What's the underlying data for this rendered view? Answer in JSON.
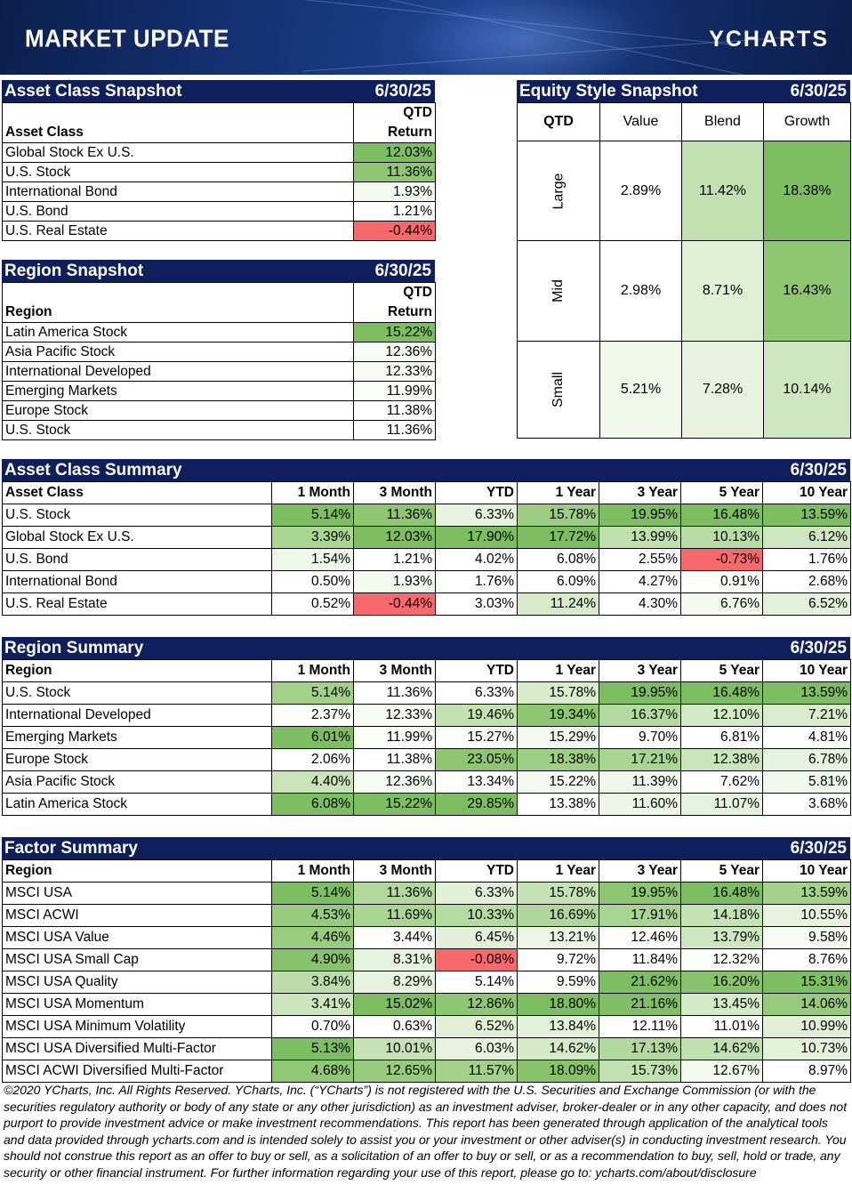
{
  "banner": {
    "title": "MARKET UPDATE",
    "logo": "YCHARTS"
  },
  "colors": {
    "header_bg": "#0e1f5b",
    "green_strong": "#7dbe63",
    "green_mid": "#a9d491",
    "green_light": "#d3eac6",
    "green_pale": "#ebf5e4",
    "red": "#f8696b"
  },
  "asset_snapshot": {
    "title": "Asset Class Snapshot",
    "date": "6/30/25",
    "col_label": "Asset Class",
    "col_value_line1": "QTD",
    "col_value_line2": "Return",
    "rows": [
      {
        "label": "Global Stock Ex U.S.",
        "value": "12.03%",
        "shade": "#7dbe63"
      },
      {
        "label": "U.S. Stock",
        "value": "11.36%",
        "shade": "#8ec671"
      },
      {
        "label": "International Bond",
        "value": "1.93%",
        "shade": "#f2f9ee"
      },
      {
        "label": "U.S. Bond",
        "value": "1.21%",
        "shade": "#ffffff"
      },
      {
        "label": "U.S. Real Estate",
        "value": "-0.44%",
        "shade": "#f8696b"
      }
    ]
  },
  "region_snapshot": {
    "title": "Region Snapshot",
    "date": "6/30/25",
    "col_label": "Region",
    "col_value_line1": "QTD",
    "col_value_line2": "Return",
    "rows": [
      {
        "label": "Latin America Stock",
        "value": "15.22%",
        "shade": "#7dbe63"
      },
      {
        "label": "Asia Pacific Stock",
        "value": "12.36%",
        "shade": "#f5faf2"
      },
      {
        "label": "International Developed",
        "value": "12.33%",
        "shade": "#f7fbf4"
      },
      {
        "label": "Emerging Markets",
        "value": "11.99%",
        "shade": "#fbfdf9"
      },
      {
        "label": "Europe Stock",
        "value": "11.38%",
        "shade": "#ffffff"
      },
      {
        "label": "U.S. Stock",
        "value": "11.36%",
        "shade": "#ffffff"
      }
    ]
  },
  "equity_style": {
    "title": "Equity Style Snapshot",
    "date": "6/30/25",
    "corner": "QTD",
    "cols": [
      "Value",
      "Blend",
      "Growth"
    ],
    "rows": [
      {
        "label": "Large",
        "cells": [
          {
            "v": "2.89%",
            "shade": "#ffffff"
          },
          {
            "v": "11.42%",
            "shade": "#c2e1b0"
          },
          {
            "v": "18.38%",
            "shade": "#7dbe63"
          }
        ]
      },
      {
        "label": "Mid",
        "cells": [
          {
            "v": "2.98%",
            "shade": "#ffffff"
          },
          {
            "v": "8.71%",
            "shade": "#dff0d4"
          },
          {
            "v": "16.43%",
            "shade": "#8ec671"
          }
        ]
      },
      {
        "label": "Small",
        "cells": [
          {
            "v": "5.21%",
            "shade": "#f1f8ec"
          },
          {
            "v": "7.28%",
            "shade": "#e8f4e0"
          },
          {
            "v": "10.14%",
            "shade": "#cfe7c0"
          }
        ]
      }
    ]
  },
  "summary_cols": [
    "1 Month",
    "3 Month",
    "YTD",
    "1 Year",
    "3 Year",
    "5 Year",
    "10 Year"
  ],
  "asset_summary": {
    "title": "Asset Class Summary",
    "date": "6/30/25",
    "col_label": "Asset Class",
    "rows": [
      {
        "label": "U.S. Stock",
        "cells": [
          {
            "v": "5.14%",
            "s": "#7dbe63"
          },
          {
            "v": "11.36%",
            "s": "#8ec671"
          },
          {
            "v": "6.33%",
            "s": "#e7f3df"
          },
          {
            "v": "15.78%",
            "s": "#9ccd82"
          },
          {
            "v": "19.95%",
            "s": "#7dbe63"
          },
          {
            "v": "16.48%",
            "s": "#7dbe63"
          },
          {
            "v": "13.59%",
            "s": "#7dbe63"
          }
        ]
      },
      {
        "label": "Global Stock Ex U.S.",
        "cells": [
          {
            "v": "3.39%",
            "s": "#a9d491"
          },
          {
            "v": "12.03%",
            "s": "#7dbe63"
          },
          {
            "v": "17.90%",
            "s": "#7dbe63"
          },
          {
            "v": "17.72%",
            "s": "#7dbe63"
          },
          {
            "v": "13.99%",
            "s": "#bfdfad"
          },
          {
            "v": "10.13%",
            "s": "#b9dca6"
          },
          {
            "v": "6.12%",
            "s": "#cde6bf"
          }
        ]
      },
      {
        "label": "U.S. Bond",
        "cells": [
          {
            "v": "1.54%",
            "s": "#eef7e9"
          },
          {
            "v": "1.21%",
            "s": "#ffffff"
          },
          {
            "v": "4.02%",
            "s": "#ffffff"
          },
          {
            "v": "6.08%",
            "s": "#ffffff"
          },
          {
            "v": "2.55%",
            "s": "#ffffff"
          },
          {
            "v": "-0.73%",
            "s": "#f8696b"
          },
          {
            "v": "1.76%",
            "s": "#ffffff"
          }
        ]
      },
      {
        "label": "International Bond",
        "cells": [
          {
            "v": "0.50%",
            "s": "#ffffff"
          },
          {
            "v": "1.93%",
            "s": "#f2f9ee"
          },
          {
            "v": "1.76%",
            "s": "#ffffff"
          },
          {
            "v": "6.09%",
            "s": "#ffffff"
          },
          {
            "v": "4.27%",
            "s": "#ffffff"
          },
          {
            "v": "0.91%",
            "s": "#ffffff"
          },
          {
            "v": "2.68%",
            "s": "#ffffff"
          }
        ]
      },
      {
        "label": "U.S. Real Estate",
        "cells": [
          {
            "v": "0.52%",
            "s": "#ffffff"
          },
          {
            "v": "-0.44%",
            "s": "#f8696b"
          },
          {
            "v": "3.03%",
            "s": "#ffffff"
          },
          {
            "v": "11.24%",
            "s": "#d6ebc9"
          },
          {
            "v": "4.30%",
            "s": "#ffffff"
          },
          {
            "v": "6.76%",
            "s": "#f3f9ef"
          },
          {
            "v": "6.52%",
            "s": "#e3f1da"
          }
        ]
      }
    ]
  },
  "region_summary": {
    "title": "Region Summary",
    "date": "6/30/25",
    "col_label": "Region",
    "rows": [
      {
        "label": "U.S. Stock",
        "cells": [
          {
            "v": "5.14%",
            "s": "#a3d189"
          },
          {
            "v": "11.36%",
            "s": "#ffffff"
          },
          {
            "v": "6.33%",
            "s": "#ffffff"
          },
          {
            "v": "15.78%",
            "s": "#d7ecca"
          },
          {
            "v": "19.95%",
            "s": "#7dbe63"
          },
          {
            "v": "16.48%",
            "s": "#7dbe63"
          },
          {
            "v": "13.59%",
            "s": "#7dbe63"
          }
        ]
      },
      {
        "label": "International Developed",
        "cells": [
          {
            "v": "2.37%",
            "s": "#fafdf8"
          },
          {
            "v": "12.33%",
            "s": "#f7fbf4"
          },
          {
            "v": "19.46%",
            "s": "#c3e1b1"
          },
          {
            "v": "19.34%",
            "s": "#8ec671"
          },
          {
            "v": "16.37%",
            "s": "#b5daa1"
          },
          {
            "v": "12.10%",
            "s": "#d3eac6"
          },
          {
            "v": "7.21%",
            "s": "#d9edce"
          }
        ]
      },
      {
        "label": "Emerging Markets",
        "cells": [
          {
            "v": "6.01%",
            "s": "#7dbe63"
          },
          {
            "v": "11.99%",
            "s": "#fbfdf9"
          },
          {
            "v": "15.27%",
            "s": "#fbfdf9"
          },
          {
            "v": "15.29%",
            "s": "#f3f9ef"
          },
          {
            "v": "9.70%",
            "s": "#ffffff"
          },
          {
            "v": "6.81%",
            "s": "#ffffff"
          },
          {
            "v": "4.81%",
            "s": "#ffffff"
          }
        ]
      },
      {
        "label": "Europe Stock",
        "cells": [
          {
            "v": "2.06%",
            "s": "#ffffff"
          },
          {
            "v": "11.38%",
            "s": "#ffffff"
          },
          {
            "v": "23.05%",
            "s": "#8ec671"
          },
          {
            "v": "18.38%",
            "s": "#9fcf85"
          },
          {
            "v": "17.21%",
            "s": "#a9d491"
          },
          {
            "v": "12.38%",
            "s": "#cae5bb"
          },
          {
            "v": "6.78%",
            "s": "#e6f3de"
          }
        ]
      },
      {
        "label": "Asia Pacific Stock",
        "cells": [
          {
            "v": "4.40%",
            "s": "#c9e4b9"
          },
          {
            "v": "12.36%",
            "s": "#f5faf2"
          },
          {
            "v": "13.34%",
            "s": "#ffffff"
          },
          {
            "v": "15.22%",
            "s": "#f3f9ef"
          },
          {
            "v": "11.39%",
            "s": "#eff7ea"
          },
          {
            "v": "7.62%",
            "s": "#ffffff"
          },
          {
            "v": "5.81%",
            "s": "#f1f8ec"
          }
        ]
      },
      {
        "label": "Latin America Stock",
        "cells": [
          {
            "v": "6.08%",
            "s": "#7dbe63"
          },
          {
            "v": "15.22%",
            "s": "#7dbe63"
          },
          {
            "v": "29.85%",
            "s": "#7dbe63"
          },
          {
            "v": "13.38%",
            "s": "#ffffff"
          },
          {
            "v": "11.60%",
            "s": "#edf6e7"
          },
          {
            "v": "11.07%",
            "s": "#e6f3de"
          },
          {
            "v": "3.68%",
            "s": "#ffffff"
          }
        ]
      }
    ]
  },
  "factor_summary": {
    "title": "Factor Summary",
    "date": "6/30/25",
    "col_label": "Region",
    "rows": [
      {
        "label": "MSCI USA",
        "cells": [
          {
            "v": "5.14%",
            "s": "#7dbe63"
          },
          {
            "v": "11.36%",
            "s": "#b2d89d"
          },
          {
            "v": "6.33%",
            "s": "#e2f0d9"
          },
          {
            "v": "15.78%",
            "s": "#c5e2b4"
          },
          {
            "v": "19.95%",
            "s": "#8dc570"
          },
          {
            "v": "16.48%",
            "s": "#7dbe63"
          },
          {
            "v": "13.59%",
            "s": "#a4d28a"
          }
        ]
      },
      {
        "label": "MSCI ACWI",
        "cells": [
          {
            "v": "4.53%",
            "s": "#98cb7d"
          },
          {
            "v": "11.69%",
            "s": "#aad592"
          },
          {
            "v": "10.33%",
            "s": "#b6dba2"
          },
          {
            "v": "16.69%",
            "s": "#b0d79b"
          },
          {
            "v": "17.91%",
            "s": "#a9d491"
          },
          {
            "v": "14.18%",
            "s": "#c5e2b4"
          },
          {
            "v": "10.55%",
            "s": "#e7f3df"
          }
        ]
      },
      {
        "label": "MSCI USA Value",
        "cells": [
          {
            "v": "4.46%",
            "s": "#9acc7f"
          },
          {
            "v": "3.44%",
            "s": "#ffffff"
          },
          {
            "v": "6.45%",
            "s": "#e2f0d9"
          },
          {
            "v": "13.21%",
            "s": "#ecf6e6"
          },
          {
            "v": "12.46%",
            "s": "#ffffff"
          },
          {
            "v": "13.79%",
            "s": "#cfe7c0"
          },
          {
            "v": "9.58%",
            "s": "#f7fbf4"
          }
        ]
      },
      {
        "label": "MSCI USA Small Cap",
        "cells": [
          {
            "v": "4.90%",
            "s": "#86c26b"
          },
          {
            "v": "8.31%",
            "s": "#e6f3de"
          },
          {
            "v": "-0.08%",
            "s": "#f8696b"
          },
          {
            "v": "9.72%",
            "s": "#ffffff"
          },
          {
            "v": "11.84%",
            "s": "#ffffff"
          },
          {
            "v": "12.32%",
            "s": "#fbfdf9"
          },
          {
            "v": "8.76%",
            "s": "#ffffff"
          }
        ]
      },
      {
        "label": "MSCI USA Quality",
        "cells": [
          {
            "v": "3.84%",
            "s": "#bcddab"
          },
          {
            "v": "8.29%",
            "s": "#e6f3de"
          },
          {
            "v": "5.14%",
            "s": "#ffffff"
          },
          {
            "v": "9.59%",
            "s": "#ffffff"
          },
          {
            "v": "21.62%",
            "s": "#7dbe63"
          },
          {
            "v": "16.20%",
            "s": "#88c36c"
          },
          {
            "v": "15.31%",
            "s": "#7dbe63"
          }
        ]
      },
      {
        "label": "MSCI USA Momentum",
        "cells": [
          {
            "v": "3.41%",
            "s": "#cbe5bc"
          },
          {
            "v": "15.02%",
            "s": "#7dbe63"
          },
          {
            "v": "12.86%",
            "s": "#8fc673"
          },
          {
            "v": "18.80%",
            "s": "#7dbe63"
          },
          {
            "v": "21.16%",
            "s": "#80bf66"
          },
          {
            "v": "13.45%",
            "s": "#d3eac6"
          },
          {
            "v": "14.06%",
            "s": "#97ca7c"
          }
        ]
      },
      {
        "label": "MSCI USA Minimum Volatility",
        "cells": [
          {
            "v": "0.70%",
            "s": "#ffffff"
          },
          {
            "v": "0.63%",
            "s": "#ffffff"
          },
          {
            "v": "6.52%",
            "s": "#e0efd6"
          },
          {
            "v": "13.84%",
            "s": "#e4f2db"
          },
          {
            "v": "12.11%",
            "s": "#ffffff"
          },
          {
            "v": "11.01%",
            "s": "#ffffff"
          },
          {
            "v": "10.99%",
            "s": "#e0efd6"
          }
        ]
      },
      {
        "label": "MSCI USA Diversified Multi-Factor",
        "cells": [
          {
            "v": "5.13%",
            "s": "#7dbe63"
          },
          {
            "v": "10.01%",
            "s": "#c4e2b3"
          },
          {
            "v": "6.03%",
            "s": "#e7f3df"
          },
          {
            "v": "14.62%",
            "s": "#d5ebc8"
          },
          {
            "v": "17.13%",
            "s": "#b2d89d"
          },
          {
            "v": "14.62%",
            "s": "#bfdfad"
          },
          {
            "v": "10.73%",
            "s": "#e4f2db"
          }
        ]
      },
      {
        "label": "MSCI ACWI Diversified Multi-Factor",
        "cells": [
          {
            "v": "4.68%",
            "s": "#90c774"
          },
          {
            "v": "12.65%",
            "s": "#98cb7d"
          },
          {
            "v": "11.57%",
            "s": "#a3d189"
          },
          {
            "v": "18.09%",
            "s": "#88c36c"
          },
          {
            "v": "15.73%",
            "s": "#c2e1b0"
          },
          {
            "v": "12.67%",
            "s": "#f3f9ef"
          },
          {
            "v": "8.97%",
            "s": "#ffffff"
          }
        ]
      }
    ]
  },
  "footer": {
    "text": "©2020 YCharts, Inc. All Rights Reserved. YCharts, Inc. (“YCharts”) is not registered with the U.S. Securities and Exchange Commission (or with the securities regulatory authority or body of any state or any other jurisdiction) as an investment adviser, broker-dealer or in any other capacity, and does not purport to provide investment advice or make investment recommendations. This report has been generated through application of the analytical tools and data provided through ycharts.com and is intended solely to assist you or your investment or other adviser(s) in conducting investment research. You should not construe this report as an offer to buy or sell, as a solicitation of an offer to buy or sell, or as a recommendation to buy, sell, hold or trade, any security or other financial instrument. For further information regarding your use of this report, please go to: ycharts.com/about/disclosure"
  }
}
